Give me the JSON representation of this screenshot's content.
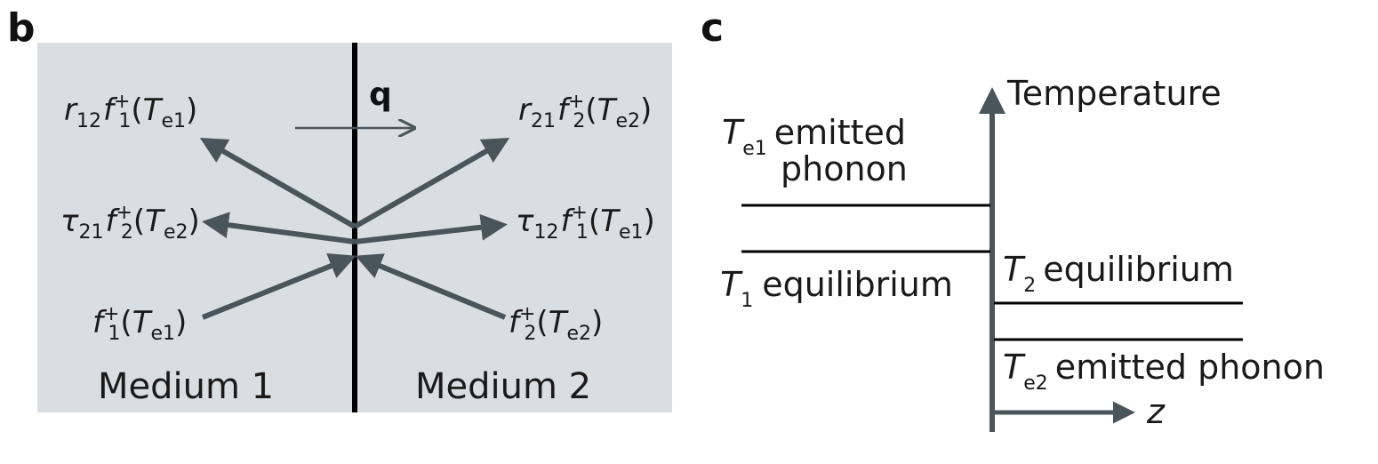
{
  "panel_b": {
    "label": "b",
    "flux_label": "q",
    "medium_left": "Medium 1",
    "medium_right": "Medium 2",
    "terms": {
      "reflect_left": {
        "coef": "r",
        "coef_sub": "12",
        "f": "f",
        "f_sup": "+",
        "f_sub": "1",
        "T": "T",
        "T_sub": "e1"
      },
      "reflect_right": {
        "coef": "r",
        "coef_sub": "21",
        "f": "f",
        "f_sup": "+",
        "f_sub": "2",
        "T": "T",
        "T_sub": "e2"
      },
      "trans_left": {
        "coef": "τ",
        "coef_sub": "21",
        "f": "f",
        "f_sup": "+",
        "f_sub": "2",
        "T": "T",
        "T_sub": "e2"
      },
      "trans_right": {
        "coef": "τ",
        "coef_sub": "12",
        "f": "f",
        "f_sup": "+",
        "f_sub": "1",
        "T": "T",
        "T_sub": "e1"
      },
      "incident_left": {
        "f": "f",
        "f_sup": "+",
        "f_sub": "1",
        "T": "T",
        "T_sub": "e1"
      },
      "incident_right": {
        "f": "f",
        "f_sup": "+",
        "f_sub": "2",
        "T": "T",
        "T_sub": "e2"
      }
    },
    "colors": {
      "background": "#d9dee2",
      "arrow": "#4a545b",
      "interface": "#000000"
    }
  },
  "panel_c": {
    "label": "c",
    "y_axis_label": "Temperature",
    "x_axis_label": "z",
    "levels": {
      "te1": {
        "T": "T",
        "sub": "e1",
        "text": "emitted",
        "text2": "phonon"
      },
      "t1": {
        "T": "T",
        "sub": "1",
        "text": "equilibrium"
      },
      "t2": {
        "T": "T",
        "sub": "2",
        "text": "equilibrium"
      },
      "te2": {
        "T": "T",
        "sub": "e2",
        "text": "emitted phonon"
      }
    },
    "colors": {
      "axis": "#4a545b",
      "line": "#000000"
    }
  }
}
